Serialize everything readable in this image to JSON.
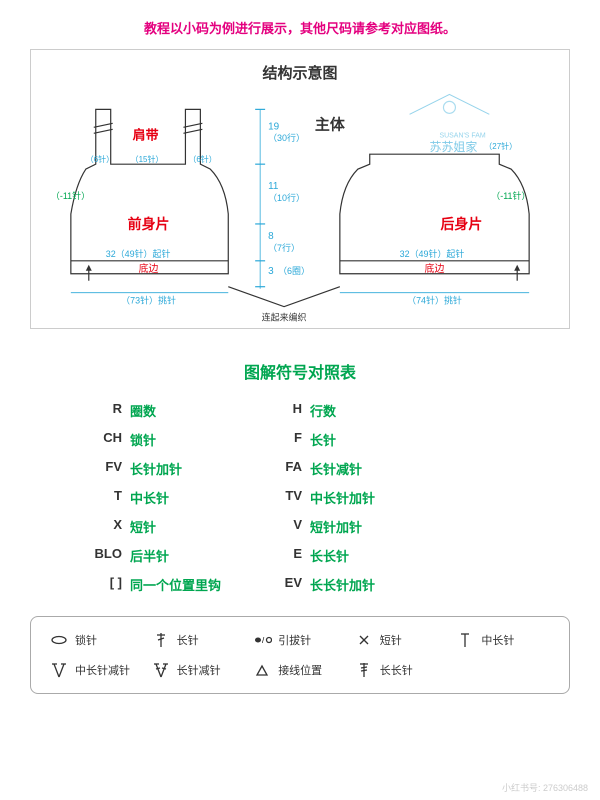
{
  "colors": {
    "magenta": "#e4007f",
    "green": "#00a650",
    "red": "#e60012",
    "blue": "#2ba8d8",
    "dark": "#333333",
    "border": "#bbbbbb"
  },
  "banner": "教程以小码为例进行展示，其他尺码请参考对应图纸。",
  "diagram": {
    "title": "结构示意图",
    "main_label": "主体",
    "strap_label": "肩带",
    "front_piece": "前身片",
    "back_piece": "后身片",
    "watermark": "苏苏姐家",
    "watermark_small": "SUSAN'S FAM",
    "bottom_note": "连起来编织",
    "m_19": "19",
    "m_30rows": "（30行）",
    "m_11": "11",
    "m_10rows": "（10行）",
    "m_8": "8",
    "m_7rows": "（7行）",
    "m_3": "3",
    "m_6rounds": "（6圈）",
    "m_6st_l": "（6针）",
    "m_15st": "（15针）",
    "m_6st_r": "（6针）",
    "m_27st": "（27针）",
    "m_neg11_l": "（-11针）",
    "m_neg11_r": "（-11针）",
    "front_cast": "32（49针）起针",
    "back_cast": "32（49针）起针",
    "hem_l": "底边",
    "hem_r": "底边",
    "pick_l": "（73针）挑针",
    "pick_r": "（74针）挑针"
  },
  "legend": {
    "title": "图解符号对照表",
    "items": [
      {
        "sym": "R",
        "label": "圈数"
      },
      {
        "sym": "H",
        "label": "行数"
      },
      {
        "sym": "CH",
        "label": "锁针"
      },
      {
        "sym": "F",
        "label": "长针"
      },
      {
        "sym": "FV",
        "label": "长针加针"
      },
      {
        "sym": "FA",
        "label": "长针减针"
      },
      {
        "sym": "T",
        "label": "中长针"
      },
      {
        "sym": "TV",
        "label": "中长针加针"
      },
      {
        "sym": "X",
        "label": "短针"
      },
      {
        "sym": "V",
        "label": "短针加针"
      },
      {
        "sym": "BLO",
        "label": "后半针"
      },
      {
        "sym": "E",
        "label": "长长针"
      },
      {
        "sym": "[ ]",
        "label": "同一个位置里钩"
      },
      {
        "sym": "EV",
        "label": "长长针加针"
      }
    ]
  },
  "symbol_box": {
    "items": [
      {
        "icon": "oval",
        "label": "锁针"
      },
      {
        "icon": "f",
        "label": "长针"
      },
      {
        "icon": "dots",
        "label": "引拔针"
      },
      {
        "icon": "x",
        "label": "短针"
      },
      {
        "icon": "t",
        "label": "中长针"
      },
      {
        "icon": "ta",
        "label": "中长针减针"
      },
      {
        "icon": "fa",
        "label": "长针减针"
      },
      {
        "icon": "tri",
        "label": "接线位置"
      },
      {
        "icon": "e",
        "label": "长长针"
      }
    ]
  },
  "footer_id": "小红书号: 276306488"
}
